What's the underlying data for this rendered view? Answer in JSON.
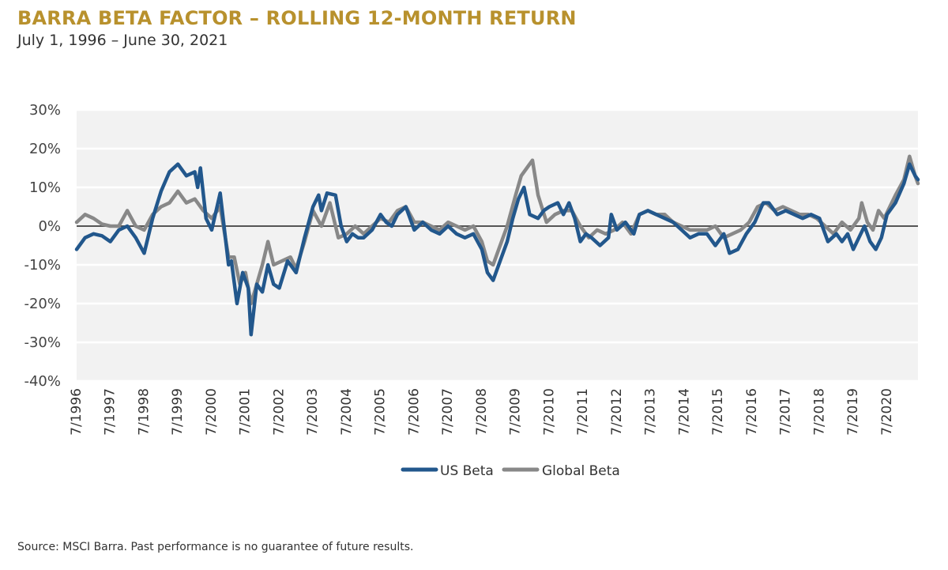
{
  "page": {
    "title": "BARRA BETA FACTOR – ROLLING 12-MONTH RETURN",
    "subtitle": "July 1, 1996 – June 30, 2021",
    "source": "Source: MSCI Barra. Past performance is no guarantee of future results."
  },
  "colors": {
    "title": "#b8912d",
    "us_beta": "#22578c",
    "global_beta": "#888888",
    "plot_bg": "#f2f2f2",
    "zero_line": "#555555"
  },
  "chart_data": {
    "type": "line",
    "title": "BARRA BETA FACTOR – ROLLING 12-MONTH RETURN",
    "subtitle": "July 1, 1996 – June 30, 2021",
    "x_range": [
      "1996-07",
      "2021-06"
    ],
    "x_tick_labels": [
      "7/1996",
      "7/1997",
      "7/1998",
      "7/1999",
      "7/2000",
      "7/2001",
      "7/2002",
      "7/2003",
      "7/2004",
      "7/2005",
      "7/2006",
      "7/2007",
      "7/2008",
      "7/2009",
      "7/2010",
      "7/2011",
      "7/2012",
      "7/2013",
      "7/2014",
      "7/2015",
      "7/2016",
      "7/2017",
      "7/2018",
      "7/2019",
      "7/2020"
    ],
    "y_ticks": [
      30,
      20,
      10,
      0,
      -10,
      -20,
      -30,
      -40
    ],
    "y_tick_labels": [
      "30%",
      "20%",
      "10%",
      "0%",
      "-10%",
      "-20%",
      "-30%",
      "-40%"
    ],
    "ylim": [
      -40,
      30
    ],
    "y_unit": "%",
    "grid": "horizontal",
    "legend": "bottom-center",
    "series": [
      {
        "name": "US Beta",
        "color": "#22578c",
        "points": [
          [
            "1996-07",
            -6
          ],
          [
            "1996-10",
            -3
          ],
          [
            "1997-01",
            -2
          ],
          [
            "1997-04",
            -2.5
          ],
          [
            "1997-07",
            -4
          ],
          [
            "1997-10",
            -1
          ],
          [
            "1998-01",
            0
          ],
          [
            "1998-04",
            -3
          ],
          [
            "1998-07",
            -7
          ],
          [
            "1998-10",
            2
          ],
          [
            "1999-01",
            9
          ],
          [
            "1999-04",
            14
          ],
          [
            "1999-07",
            16
          ],
          [
            "1999-10",
            13
          ],
          [
            "2000-01",
            14
          ],
          [
            "2000-02",
            10
          ],
          [
            "2000-03",
            15
          ],
          [
            "2000-05",
            2
          ],
          [
            "2000-07",
            -1
          ],
          [
            "2000-10",
            8.5
          ],
          [
            "2001-01",
            -10
          ],
          [
            "2001-02",
            -9
          ],
          [
            "2001-04",
            -20
          ],
          [
            "2001-06",
            -12
          ],
          [
            "2001-08",
            -16
          ],
          [
            "2001-09",
            -28
          ],
          [
            "2001-11",
            -15
          ],
          [
            "2002-01",
            -17
          ],
          [
            "2002-03",
            -10
          ],
          [
            "2002-05",
            -15
          ],
          [
            "2002-07",
            -16
          ],
          [
            "2002-10",
            -9
          ],
          [
            "2003-01",
            -12
          ],
          [
            "2003-04",
            -3
          ],
          [
            "2003-07",
            5
          ],
          [
            "2003-09",
            8
          ],
          [
            "2003-10",
            4
          ],
          [
            "2003-12",
            8.5
          ],
          [
            "2004-03",
            8
          ],
          [
            "2004-05",
            0
          ],
          [
            "2004-07",
            -4
          ],
          [
            "2004-09",
            -2
          ],
          [
            "2004-11",
            -3
          ],
          [
            "2005-01",
            -3
          ],
          [
            "2005-04",
            -1
          ],
          [
            "2005-07",
            3
          ],
          [
            "2005-09",
            1
          ],
          [
            "2005-11",
            0
          ],
          [
            "2006-01",
            3
          ],
          [
            "2006-04",
            5
          ],
          [
            "2006-07",
            -1
          ],
          [
            "2006-10",
            1
          ],
          [
            "2007-01",
            -1
          ],
          [
            "2007-04",
            -2
          ],
          [
            "2007-07",
            0
          ],
          [
            "2007-10",
            -2
          ],
          [
            "2008-01",
            -3
          ],
          [
            "2008-04",
            -2
          ],
          [
            "2008-07",
            -6
          ],
          [
            "2008-09",
            -12
          ],
          [
            "2008-11",
            -14
          ],
          [
            "2009-01",
            -10
          ],
          [
            "2009-04",
            -4
          ],
          [
            "2009-06",
            2
          ],
          [
            "2009-08",
            7
          ],
          [
            "2009-10",
            10
          ],
          [
            "2009-12",
            3
          ],
          [
            "2010-03",
            2
          ],
          [
            "2010-05",
            4
          ],
          [
            "2010-07",
            5
          ],
          [
            "2010-10",
            6
          ],
          [
            "2010-12",
            3
          ],
          [
            "2011-02",
            6
          ],
          [
            "2011-04",
            2
          ],
          [
            "2011-06",
            -4
          ],
          [
            "2011-08",
            -2
          ],
          [
            "2011-10",
            -3
          ],
          [
            "2012-01",
            -5
          ],
          [
            "2012-04",
            -3
          ],
          [
            "2012-05",
            3
          ],
          [
            "2012-07",
            -1
          ],
          [
            "2012-10",
            1
          ],
          [
            "2013-01",
            -2
          ],
          [
            "2013-03",
            3
          ],
          [
            "2013-06",
            4
          ],
          [
            "2013-09",
            3
          ],
          [
            "2013-12",
            2
          ],
          [
            "2014-03",
            1
          ],
          [
            "2014-06",
            -1
          ],
          [
            "2014-09",
            -3
          ],
          [
            "2014-12",
            -2
          ],
          [
            "2015-03",
            -2
          ],
          [
            "2015-06",
            -5
          ],
          [
            "2015-09",
            -2
          ],
          [
            "2015-11",
            -7
          ],
          [
            "2016-02",
            -6
          ],
          [
            "2016-05",
            -2
          ],
          [
            "2016-08",
            1
          ],
          [
            "2016-11",
            6
          ],
          [
            "2017-01",
            6
          ],
          [
            "2017-04",
            3
          ],
          [
            "2017-07",
            4
          ],
          [
            "2017-10",
            3
          ],
          [
            "2018-01",
            2
          ],
          [
            "2018-04",
            3
          ],
          [
            "2018-07",
            2
          ],
          [
            "2018-10",
            -4
          ],
          [
            "2019-01",
            -2
          ],
          [
            "2019-03",
            -4
          ],
          [
            "2019-05",
            -2
          ],
          [
            "2019-07",
            -6
          ],
          [
            "2019-09",
            -3
          ],
          [
            "2019-11",
            0
          ],
          [
            "2020-01",
            -4
          ],
          [
            "2020-03",
            -6
          ],
          [
            "2020-05",
            -3
          ],
          [
            "2020-07",
            3
          ],
          [
            "2020-10",
            6
          ],
          [
            "2021-01",
            11
          ],
          [
            "2021-03",
            16
          ],
          [
            "2021-05",
            13
          ],
          [
            "2021-06",
            12
          ]
        ]
      },
      {
        "name": "Global Beta",
        "color": "#888888",
        "points": [
          [
            "1996-07",
            1
          ],
          [
            "1996-10",
            3
          ],
          [
            "1997-01",
            2
          ],
          [
            "1997-04",
            0.5
          ],
          [
            "1997-07",
            0
          ],
          [
            "1997-10",
            0
          ],
          [
            "1998-01",
            4
          ],
          [
            "1998-04",
            0
          ],
          [
            "1998-07",
            -1
          ],
          [
            "1998-10",
            3
          ],
          [
            "1999-01",
            5
          ],
          [
            "1999-04",
            6
          ],
          [
            "1999-07",
            9
          ],
          [
            "1999-10",
            6
          ],
          [
            "2000-01",
            7
          ],
          [
            "2000-04",
            4
          ],
          [
            "2000-07",
            2
          ],
          [
            "2000-10",
            5
          ],
          [
            "2001-01",
            -8
          ],
          [
            "2001-03",
            -8
          ],
          [
            "2001-05",
            -15
          ],
          [
            "2001-07",
            -12
          ],
          [
            "2001-09",
            -20
          ],
          [
            "2001-11",
            -15
          ],
          [
            "2002-01",
            -10
          ],
          [
            "2002-03",
            -4
          ],
          [
            "2002-05",
            -10
          ],
          [
            "2002-08",
            -9
          ],
          [
            "2002-11",
            -8
          ],
          [
            "2003-01",
            -11
          ],
          [
            "2003-04",
            -4
          ],
          [
            "2003-07",
            4
          ],
          [
            "2003-10",
            0
          ],
          [
            "2004-01",
            6
          ],
          [
            "2004-04",
            -3
          ],
          [
            "2004-07",
            -2
          ],
          [
            "2004-10",
            0
          ],
          [
            "2005-01",
            -2
          ],
          [
            "2005-04",
            0
          ],
          [
            "2005-07",
            2
          ],
          [
            "2005-10",
            1
          ],
          [
            "2006-01",
            4
          ],
          [
            "2006-04",
            5
          ],
          [
            "2006-07",
            1
          ],
          [
            "2006-10",
            1
          ],
          [
            "2007-01",
            0
          ],
          [
            "2007-04",
            -1
          ],
          [
            "2007-07",
            1
          ],
          [
            "2007-10",
            0
          ],
          [
            "2008-01",
            -1
          ],
          [
            "2008-04",
            0
          ],
          [
            "2008-07",
            -4
          ],
          [
            "2008-09",
            -9
          ],
          [
            "2008-11",
            -10
          ],
          [
            "2009-01",
            -6
          ],
          [
            "2009-04",
            0
          ],
          [
            "2009-07",
            8
          ],
          [
            "2009-09",
            13
          ],
          [
            "2009-11",
            15
          ],
          [
            "2010-01",
            17
          ],
          [
            "2010-03",
            8
          ],
          [
            "2010-06",
            1
          ],
          [
            "2010-09",
            3
          ],
          [
            "2010-12",
            4
          ],
          [
            "2011-03",
            4
          ],
          [
            "2011-06",
            0
          ],
          [
            "2011-09",
            -3
          ],
          [
            "2011-12",
            -1
          ],
          [
            "2012-03",
            -2
          ],
          [
            "2012-06",
            -1
          ],
          [
            "2012-09",
            1
          ],
          [
            "2012-12",
            -2
          ],
          [
            "2013-03",
            3
          ],
          [
            "2013-06",
            4
          ],
          [
            "2013-09",
            3
          ],
          [
            "2013-12",
            3
          ],
          [
            "2014-03",
            1
          ],
          [
            "2014-06",
            0
          ],
          [
            "2014-09",
            -1
          ],
          [
            "2014-12",
            -1
          ],
          [
            "2015-03",
            -1
          ],
          [
            "2015-06",
            0
          ],
          [
            "2015-09",
            -3
          ],
          [
            "2015-12",
            -2
          ],
          [
            "2016-03",
            -1
          ],
          [
            "2016-06",
            1
          ],
          [
            "2016-09",
            5
          ],
          [
            "2016-12",
            6
          ],
          [
            "2017-03",
            4
          ],
          [
            "2017-06",
            5
          ],
          [
            "2017-09",
            4
          ],
          [
            "2017-12",
            3
          ],
          [
            "2018-03",
            3
          ],
          [
            "2018-06",
            2
          ],
          [
            "2018-09",
            0
          ],
          [
            "2018-12",
            -2
          ],
          [
            "2019-03",
            1
          ],
          [
            "2019-06",
            -1
          ],
          [
            "2019-09",
            2
          ],
          [
            "2019-10",
            6
          ],
          [
            "2019-12",
            1
          ],
          [
            "2020-02",
            -1
          ],
          [
            "2020-04",
            4
          ],
          [
            "2020-06",
            2
          ],
          [
            "2020-08",
            5
          ],
          [
            "2020-10",
            8
          ],
          [
            "2021-01",
            12
          ],
          [
            "2021-03",
            18
          ],
          [
            "2021-05",
            13
          ],
          [
            "2021-06",
            11
          ]
        ]
      }
    ]
  },
  "legend": {
    "items": [
      {
        "label": "US Beta",
        "color": "#22578c"
      },
      {
        "label": "Global Beta",
        "color": "#888888"
      }
    ]
  }
}
